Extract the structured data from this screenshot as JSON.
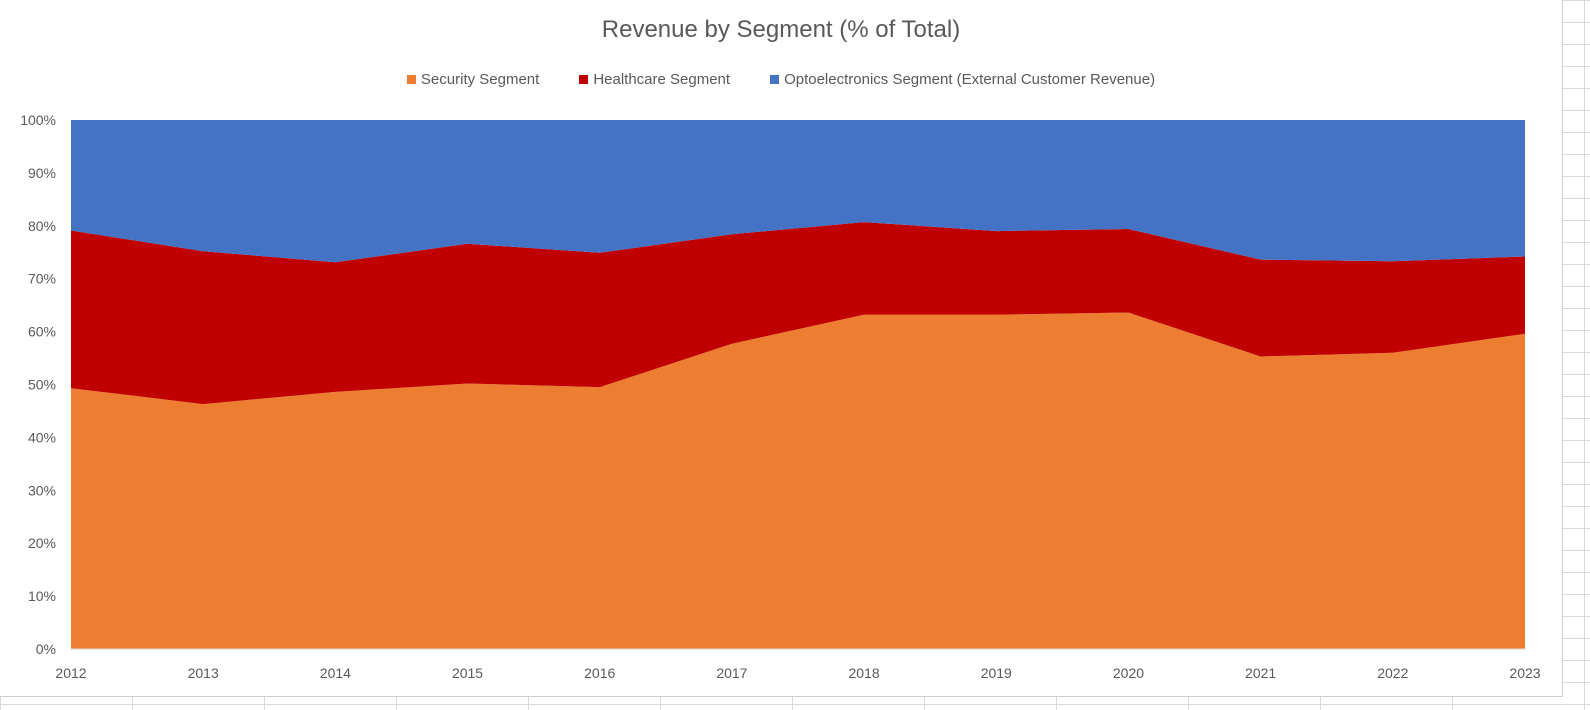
{
  "chart_data": {
    "type": "area",
    "stacking": "percent",
    "title": "Revenue by Segment (% of Total)",
    "categories": [
      "2012",
      "2013",
      "2014",
      "2015",
      "2016",
      "2017",
      "2018",
      "2019",
      "2020",
      "2021",
      "2022",
      "2023"
    ],
    "y_ticks": [
      "0%",
      "10%",
      "20%",
      "30%",
      "40%",
      "50%",
      "60%",
      "70%",
      "80%",
      "90%",
      "100%"
    ],
    "ylim": [
      0,
      100
    ],
    "legend_position": "top",
    "grid": false,
    "series": [
      {
        "name": "Security Segment",
        "color": "#ED7D31",
        "values": [
          49.3,
          46.3,
          48.6,
          50.2,
          49.5,
          57.7,
          63.2,
          63.2,
          63.6,
          55.3,
          56.0,
          59.6
        ]
      },
      {
        "name": "Healthcare Segment",
        "color": "#C00000",
        "values": [
          29.8,
          28.9,
          24.5,
          26.4,
          25.4,
          20.7,
          17.5,
          15.8,
          15.8,
          18.3,
          17.3,
          14.6
        ]
      },
      {
        "name": "Optoelectronics Segment (External Customer Revenue)",
        "color": "#4472C4",
        "values": [
          20.9,
          24.8,
          26.9,
          23.4,
          25.1,
          21.6,
          19.3,
          21.0,
          20.6,
          26.4,
          26.7,
          25.8
        ]
      }
    ]
  }
}
